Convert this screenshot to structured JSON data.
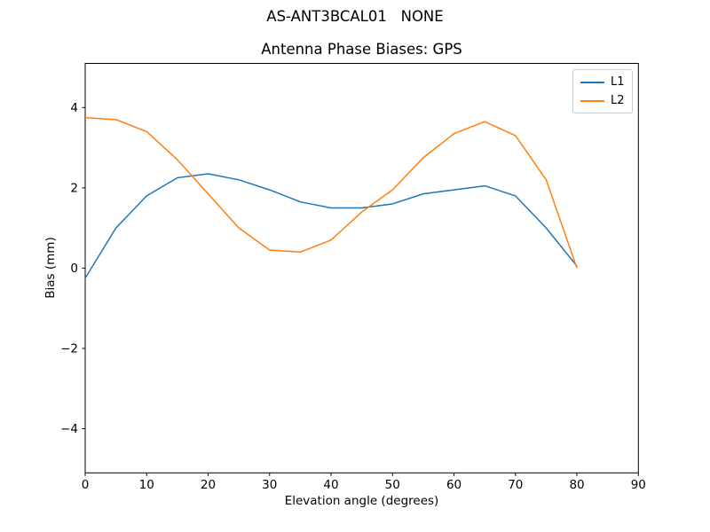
{
  "figure": {
    "suptitle": "AS-ANT3BCAL01   NONE",
    "background": "#ffffff"
  },
  "chart_data": {
    "type": "line",
    "title": "Antenna Phase Biases: GPS",
    "xlabel": "Elevation angle (degrees)",
    "ylabel": "Bias (mm)",
    "xlim": [
      0,
      90
    ],
    "ylim": [
      -5.1,
      5.1
    ],
    "grid": false,
    "axis_color": "#000000",
    "line_width": 1.5,
    "x_ticks": {
      "values": [
        0,
        10,
        20,
        30,
        40,
        50,
        60,
        70,
        80,
        90
      ],
      "labels": [
        "0",
        "10",
        "20",
        "30",
        "40",
        "50",
        "60",
        "70",
        "80",
        "90"
      ]
    },
    "y_ticks": {
      "values": [
        -4,
        -2,
        0,
        2,
        4
      ],
      "labels": [
        "−4",
        "−2",
        "0",
        "2",
        "4"
      ]
    },
    "legend": {
      "position": "upper right",
      "entries": [
        "L1",
        "L2"
      ]
    },
    "x": [
      0,
      5,
      10,
      15,
      20,
      25,
      30,
      35,
      40,
      45,
      50,
      55,
      60,
      65,
      70,
      75,
      80
    ],
    "series": [
      {
        "name": "L1",
        "color": "#1f77b4",
        "values": [
          -0.25,
          1.0,
          1.8,
          2.25,
          2.35,
          2.2,
          1.95,
          1.65,
          1.5,
          1.5,
          1.6,
          1.85,
          1.95,
          2.05,
          1.8,
          1.0,
          0.05
        ]
      },
      {
        "name": "L2",
        "color": "#ff7f0e",
        "values": [
          3.75,
          3.7,
          3.4,
          2.7,
          1.85,
          1.0,
          0.45,
          0.4,
          0.7,
          1.4,
          1.95,
          2.75,
          3.35,
          3.65,
          3.3,
          2.2,
          0.0
        ]
      }
    ]
  }
}
